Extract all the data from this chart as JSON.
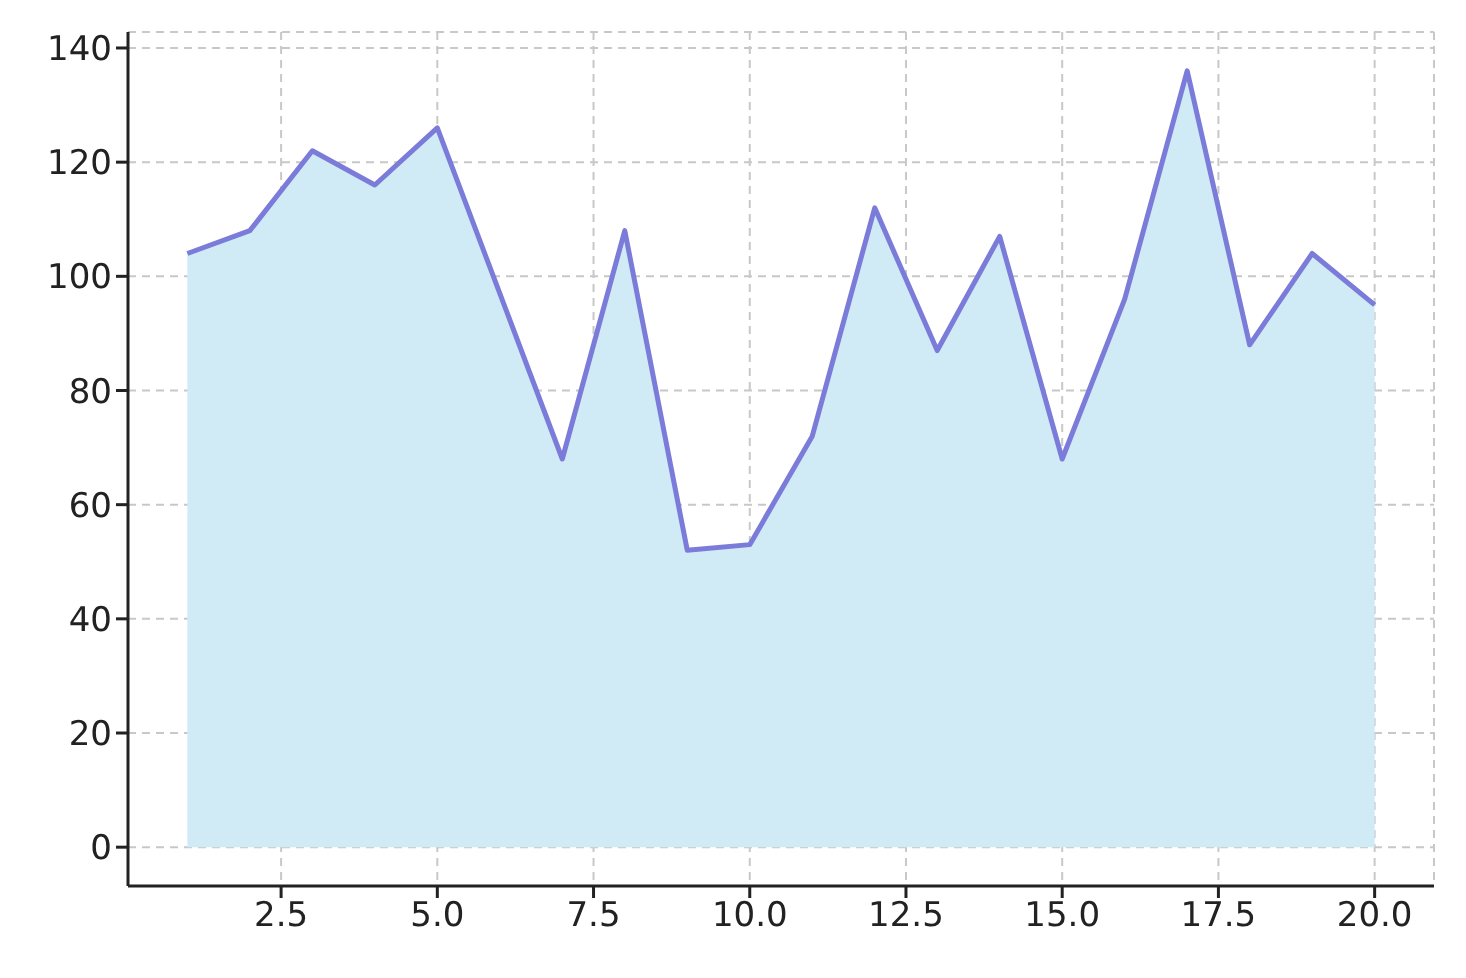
{
  "chart_data": {
    "type": "area",
    "x": [
      1,
      2,
      3,
      4,
      5,
      6,
      7,
      8,
      9,
      10,
      11,
      12,
      13,
      14,
      15,
      16,
      17,
      18,
      19,
      20
    ],
    "series": [
      {
        "color": "#7b7bd9",
        "values": [
          104,
          108,
          122,
          116,
          126,
          97,
          68,
          108,
          52,
          53,
          72,
          112,
          87,
          107,
          68,
          96,
          136,
          88,
          104,
          95
        ]
      }
    ],
    "xlim": [
      0.05,
      20.95
    ],
    "ylim": [
      -6.8,
      142.8
    ],
    "xticks": [
      2.5,
      {
        "value": 5,
        "label": "5.0"
      },
      7.5,
      {
        "value": 10,
        "label": "10.0"
      },
      12.5,
      {
        "value": 15,
        "label": "15.0"
      },
      17.5,
      {
        "value": 20,
        "label": "20.0"
      }
    ],
    "yticks": [
      0,
      20,
      40,
      60,
      80,
      100,
      120,
      140
    ],
    "grid": true,
    "marker": "none",
    "line_style": "solid"
  }
}
